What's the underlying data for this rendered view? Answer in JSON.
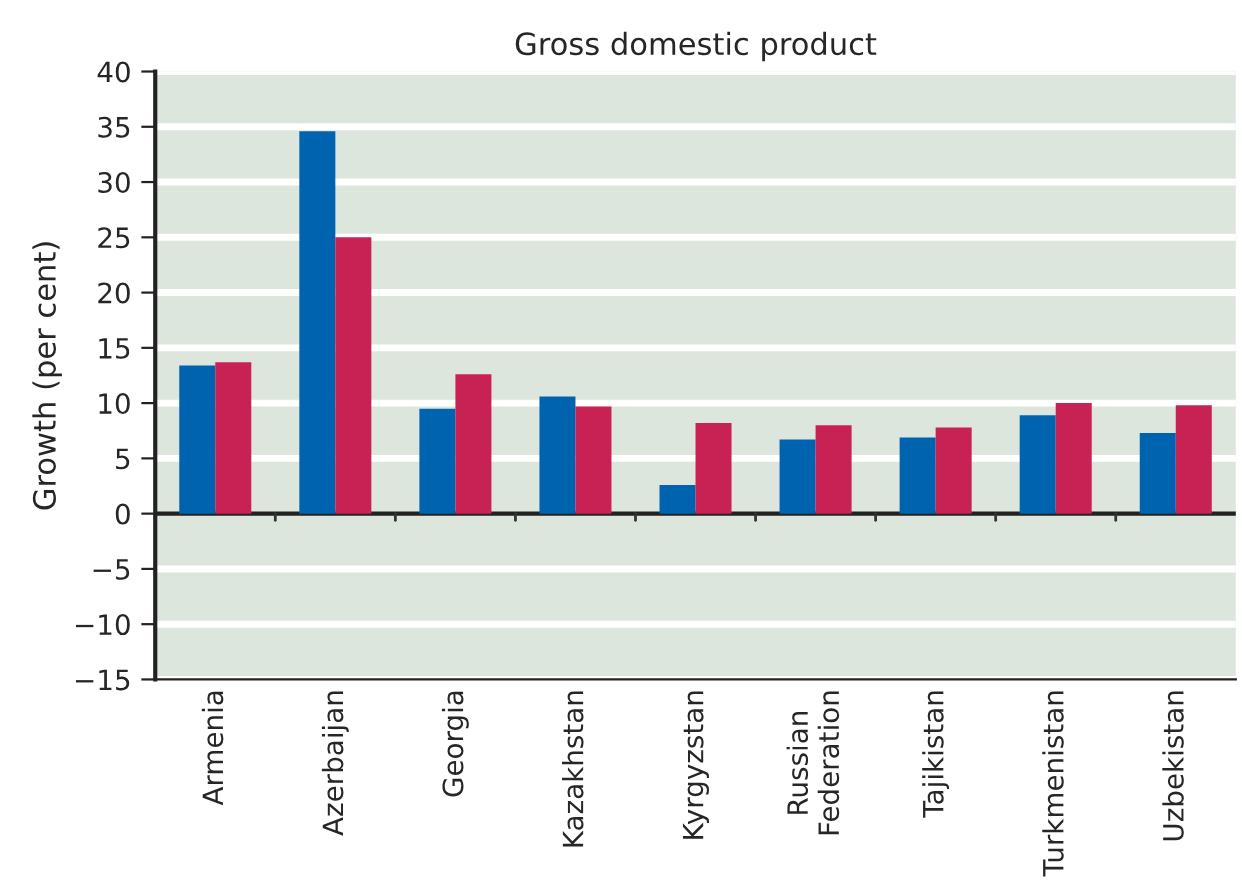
{
  "chart_data": {
    "type": "bar",
    "title": "Gross domestic product",
    "ylabel": "Growth (per cent)",
    "categories": [
      "Armenia",
      "Azerbaijan",
      "Georgia",
      "Kazakhstan",
      "Kyrgyzstan",
      "Russian\nFederation",
      "Tajikistan",
      "Turkmenistan",
      "Uzbekistan"
    ],
    "series": [
      {
        "color": "#0063b0",
        "values": [
          13.4,
          34.6,
          9.5,
          10.6,
          2.6,
          6.7,
          6.9,
          8.9,
          7.3
        ]
      },
      {
        "color": "#c82254",
        "values": [
          13.7,
          25.0,
          12.6,
          9.7,
          8.2,
          8.0,
          7.8,
          10.0,
          9.8
        ]
      }
    ],
    "ylim": [
      -15,
      40
    ],
    "yticks": [
      {
        "value": -15,
        "label": "−15"
      },
      {
        "value": -10,
        "label": "−10"
      },
      {
        "value": -5,
        "label": "−5"
      },
      0,
      5,
      10,
      15,
      20,
      25,
      30,
      35,
      40
    ],
    "grid": "y"
  }
}
